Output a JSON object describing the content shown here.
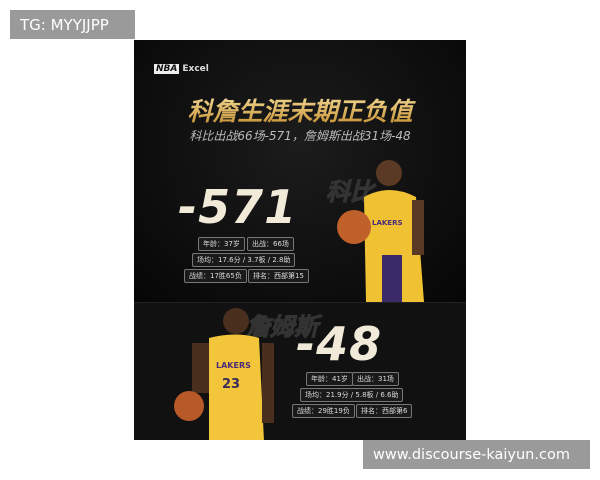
{
  "watermarks": {
    "top_left": "TG: MYYJJPP",
    "bottom_right": "www.discourse-kaiyun.com"
  },
  "poster": {
    "logo": {
      "nba": "NBA",
      "text": "Excel"
    },
    "title": "科詹生涯末期正负值",
    "subtitle": "科比出战66场-571，詹姆斯出战31场-48",
    "kobe": {
      "name": "科比",
      "value": "-571",
      "age": "年龄：37岁",
      "games": "出战：66场",
      "averages": "场均：17.6分 / 3.7板 / 2.8助",
      "record": "战绩：17胜65负",
      "rank": "排名：西部第15",
      "jersey": "LAKERS"
    },
    "lebron": {
      "name": "詹姆斯",
      "value": "-48",
      "age": "年龄：41岁",
      "games": "出战：31场",
      "averages": "场均：21.9分 / 5.8板 / 6.6助",
      "record": "战绩：29胜19负",
      "rank": "排名：西部第6",
      "jersey": "LAKERS",
      "number": "23"
    }
  }
}
